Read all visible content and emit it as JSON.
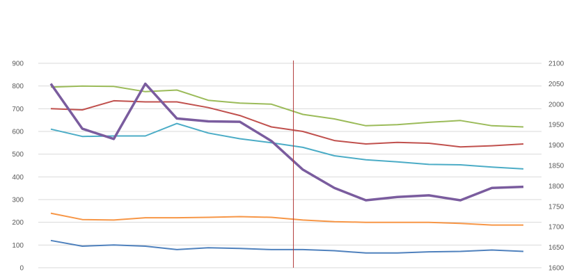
{
  "chart_data": {
    "type": "line",
    "x": [
      1,
      2,
      3,
      4,
      5,
      6,
      7,
      8,
      9,
      10,
      11,
      12,
      13,
      14,
      15,
      16
    ],
    "left_axis": {
      "ticks": [
        0,
        100,
        200,
        300,
        400,
        500,
        600,
        700,
        800,
        900
      ],
      "ylim": [
        0,
        900
      ]
    },
    "right_axis": {
      "ticks": [
        1600,
        1650,
        1700,
        1750,
        1800,
        1850,
        1900,
        1950,
        2000,
        2050,
        2100
      ],
      "ylim": [
        1600,
        2100
      ]
    },
    "marker_x": 8.7,
    "series": [
      {
        "axis": "left",
        "color": "#4f81bd",
        "values": [
          120,
          95,
          100,
          95,
          80,
          88,
          85,
          80,
          80,
          75,
          65,
          65,
          70,
          72,
          78,
          72
        ]
      },
      {
        "axis": "left",
        "color": "#f79646",
        "values": [
          240,
          212,
          210,
          220,
          220,
          222,
          225,
          222,
          210,
          203,
          200,
          200,
          200,
          195,
          188,
          188
        ]
      },
      {
        "axis": "left",
        "color": "#4bacc6",
        "values": [
          610,
          578,
          580,
          580,
          635,
          593,
          568,
          550,
          530,
          493,
          475,
          466,
          455,
          453,
          443,
          435
        ]
      },
      {
        "axis": "left",
        "color": "#c0504d",
        "values": [
          700,
          695,
          735,
          730,
          730,
          705,
          670,
          620,
          600,
          560,
          545,
          552,
          548,
          532,
          537,
          545
        ]
      },
      {
        "axis": "left",
        "color": "#9bbb59",
        "values": [
          795,
          800,
          798,
          775,
          782,
          737,
          725,
          720,
          675,
          655,
          625,
          630,
          640,
          648,
          625,
          620
        ]
      },
      {
        "axis": "right",
        "color": "#7a5c9e",
        "values": [
          2050,
          1940,
          1915,
          2050,
          1965,
          1958,
          1957,
          1910,
          1840,
          1795,
          1765,
          1773,
          1777,
          1765,
          1795,
          1798
        ]
      }
    ]
  }
}
